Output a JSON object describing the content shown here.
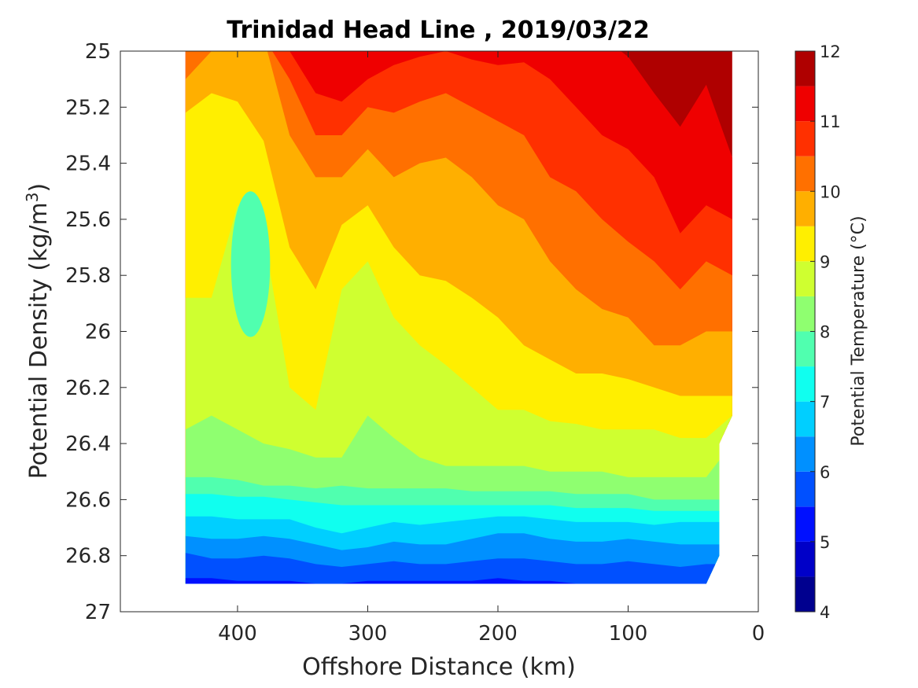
{
  "chart_data": {
    "type": "heatmap",
    "subtype": "filled-contour",
    "title": "Trinidad Head Line , 2019/03/22",
    "xlabel": "Offshore Distance (km)",
    "ylabel_main": "Potential Density (kg/m",
    "ylabel_sup": "3",
    "ylabel_end": ")",
    "xlim": [
      490,
      0
    ],
    "x_reversed": true,
    "ylim": [
      25,
      27
    ],
    "y_reversed": true,
    "xticks": [
      400,
      300,
      200,
      100,
      0
    ],
    "xtick_labels": [
      "400",
      "300",
      "200",
      "100",
      "0"
    ],
    "yticks": [
      25,
      25.2,
      25.4,
      25.6,
      25.8,
      26,
      26.2,
      26.4,
      26.6,
      26.8,
      27
    ],
    "ytick_labels": [
      "25",
      "25.2",
      "25.4",
      "25.6",
      "25.8",
      "26",
      "26.2",
      "26.4",
      "26.6",
      "26.8",
      "27"
    ],
    "colorbar": {
      "label": "Potential Temperature (°C)",
      "range": [
        4,
        12
      ],
      "ticks": [
        4,
        5,
        6,
        7,
        8,
        9,
        10,
        11,
        12
      ],
      "tick_labels": [
        "4",
        "5",
        "6",
        "7",
        "8",
        "9",
        "10",
        "11",
        "12"
      ],
      "levels": [
        4,
        4.5,
        5,
        5.5,
        6,
        6.5,
        7,
        7.5,
        8,
        8.5,
        9,
        9.5,
        10,
        10.5,
        11,
        11.5,
        12
      ],
      "colors": [
        "#00008f",
        "#0000c8",
        "#0010ff",
        "#0050ff",
        "#0090ff",
        "#00cfff",
        "#10ffef",
        "#50ffaf",
        "#8fff70",
        "#cfff30",
        "#ffef00",
        "#ffaf00",
        "#ff7000",
        "#ff3000",
        "#ef0000",
        "#af0000"
      ]
    },
    "data_extent": {
      "x_offshore": [
        440,
        20
      ],
      "density_bottom_left": 26.9
    },
    "x_samples": [
      440,
      420,
      400,
      380,
      360,
      340,
      320,
      300,
      280,
      260,
      240,
      220,
      200,
      180,
      160,
      140,
      120,
      100,
      80,
      60,
      40,
      20
    ],
    "isopycnal_depth_of_isotherms": [
      {
        "temperature": 11.5,
        "density": [
          null,
          null,
          null,
          null,
          null,
          null,
          null,
          null,
          null,
          null,
          null,
          null,
          null,
          null,
          null,
          null,
          null,
          25.02,
          25.15,
          25.27,
          25.12,
          25.38
        ]
      },
      {
        "temperature": 11,
        "density": [
          null,
          null,
          null,
          null,
          25.0,
          25.15,
          25.18,
          25.1,
          25.05,
          25.02,
          25.0,
          25.03,
          25.05,
          25.04,
          25.1,
          25.2,
          25.3,
          25.35,
          25.45,
          25.65,
          25.55,
          25.6
        ]
      },
      {
        "temperature": 10.5,
        "density": [
          null,
          25.0,
          null,
          null,
          25.1,
          25.3,
          25.3,
          25.2,
          25.22,
          25.18,
          25.15,
          25.2,
          25.25,
          25.3,
          25.45,
          25.5,
          25.6,
          25.68,
          25.75,
          25.85,
          25.75,
          25.8
        ]
      },
      {
        "temperature": 10,
        "density": [
          25.1,
          25.0,
          null,
          null,
          25.3,
          25.45,
          25.45,
          25.35,
          25.45,
          25.4,
          25.38,
          25.45,
          25.55,
          25.6,
          25.75,
          25.85,
          25.92,
          25.95,
          26.05,
          26.05,
          26.0,
          26.0
        ]
      },
      {
        "temperature": 9.5,
        "density": [
          25.22,
          25.15,
          25.18,
          25.32,
          25.7,
          25.85,
          25.62,
          25.55,
          25.7,
          25.8,
          25.82,
          25.88,
          25.95,
          26.05,
          26.1,
          26.15,
          26.15,
          26.17,
          26.2,
          26.23,
          26.23,
          26.23
        ]
      },
      {
        "temperature": 9,
        "density": [
          25.88,
          25.88,
          25.55,
          25.65,
          26.2,
          26.28,
          25.85,
          25.75,
          25.95,
          26.05,
          26.12,
          26.2,
          26.28,
          26.28,
          26.32,
          26.33,
          26.35,
          26.35,
          26.35,
          26.38,
          26.38,
          26.3
        ]
      },
      {
        "temperature": 8.5,
        "density": [
          26.35,
          26.3,
          26.35,
          26.4,
          26.42,
          26.45,
          26.45,
          26.3,
          26.38,
          26.45,
          26.48,
          26.48,
          26.48,
          26.48,
          26.5,
          26.5,
          26.5,
          26.52,
          26.52,
          26.52,
          26.52,
          26.4
        ]
      },
      {
        "temperature": 8,
        "density": [
          26.52,
          26.52,
          26.53,
          26.55,
          26.55,
          26.56,
          26.55,
          26.56,
          26.56,
          26.56,
          26.56,
          26.57,
          26.57,
          26.57,
          26.57,
          26.58,
          26.58,
          26.58,
          26.6,
          26.6,
          26.6,
          26.6
        ]
      },
      {
        "temperature": 7.5,
        "density": [
          26.58,
          26.58,
          26.59,
          26.59,
          26.6,
          26.61,
          26.62,
          26.62,
          26.62,
          26.62,
          26.62,
          26.62,
          26.62,
          26.62,
          26.62,
          26.63,
          26.63,
          26.63,
          26.64,
          26.64,
          26.64,
          26.64
        ]
      },
      {
        "temperature": 7,
        "density": [
          26.66,
          26.66,
          26.67,
          26.67,
          26.67,
          26.7,
          26.72,
          26.7,
          26.68,
          26.69,
          26.68,
          26.67,
          26.66,
          26.66,
          26.67,
          26.68,
          26.68,
          26.68,
          26.69,
          26.68,
          26.68,
          26.68
        ]
      },
      {
        "temperature": 6.5,
        "density": [
          26.73,
          26.74,
          26.74,
          26.73,
          26.74,
          26.76,
          26.78,
          26.77,
          26.75,
          26.76,
          26.76,
          26.74,
          26.72,
          26.72,
          26.74,
          26.75,
          26.75,
          26.74,
          26.75,
          26.76,
          26.76,
          26.76
        ]
      },
      {
        "temperature": 6,
        "density": [
          26.79,
          26.81,
          26.81,
          26.8,
          26.81,
          26.83,
          26.84,
          26.83,
          26.82,
          26.83,
          26.83,
          26.82,
          26.81,
          26.81,
          26.82,
          26.83,
          26.83,
          26.82,
          26.83,
          26.84,
          26.83,
          26.83
        ]
      },
      {
        "temperature": 5.5,
        "density": [
          26.88,
          26.88,
          26.89,
          26.89,
          26.89,
          26.9,
          26.9,
          26.89,
          26.89,
          26.89,
          26.89,
          26.89,
          26.88,
          26.89,
          26.89,
          26.9,
          26.9,
          26.9,
          26.9,
          26.9,
          26.9,
          26.9
        ]
      }
    ],
    "cold_core": {
      "temperature": 7.5,
      "x_range": [
        405,
        375
      ],
      "density_range": [
        25.5,
        26.02
      ]
    },
    "grid": false,
    "legend": "colorbar-right"
  }
}
